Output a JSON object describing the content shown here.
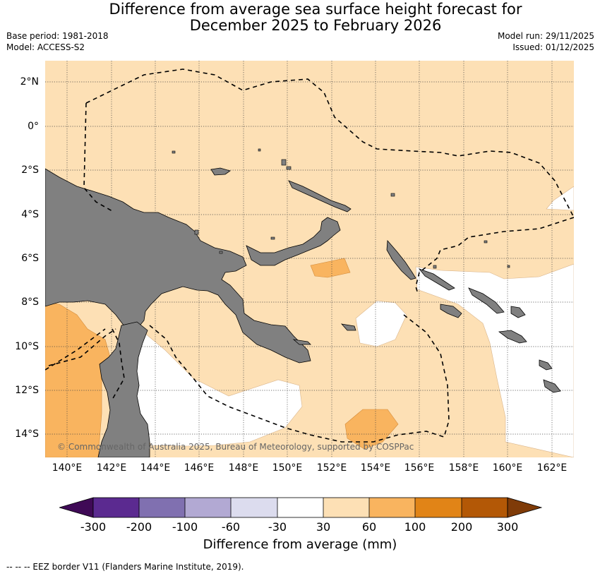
{
  "header": {
    "title_line1": "Difference from average sea surface height forecast for",
    "title_line2": "December 2025 to February 2026",
    "base_period": "Base period: 1981-2018",
    "model": "Model: ACCESS-S2",
    "model_run": "Model run: 29/11/2025",
    "issued": "Issued: 01/12/2025"
  },
  "map": {
    "lat_labels": [
      "2°N",
      "0°",
      "2°S",
      "4°S",
      "6°S",
      "8°S",
      "10°S",
      "12°S",
      "14°S"
    ],
    "lon_labels": [
      "140°E",
      "142°E",
      "144°E",
      "146°E",
      "148°E",
      "150°E",
      "152°E",
      "154°E",
      "156°E",
      "158°E",
      "160°E",
      "162°E"
    ],
    "copyright": "© Commonwealth of Australia 2025, Bureau of Meteorology, supported by COSPPac",
    "colors": {
      "land": "#808080",
      "band_30_60": "#fde0b5",
      "band_60_100": "#f9b45f",
      "band_neutral": "#ffffff"
    }
  },
  "colorbar": {
    "ticks": [
      "-300",
      "-200",
      "-100",
      "-60",
      "-30",
      "30",
      "60",
      "100",
      "200",
      "300"
    ],
    "colors": [
      "#3f0a56",
      "#5b2a90",
      "#8070b0",
      "#b2a9d3",
      "#dcdcee",
      "#ffffff",
      "#fde0b5",
      "#f9b45f",
      "#e18417",
      "#b35806",
      "#7f3b08"
    ],
    "title": "Difference from average (mm)"
  },
  "footer": {
    "legend": "--  --  -- EEZ border V11 (Flanders Marine Institute, 2019)."
  }
}
